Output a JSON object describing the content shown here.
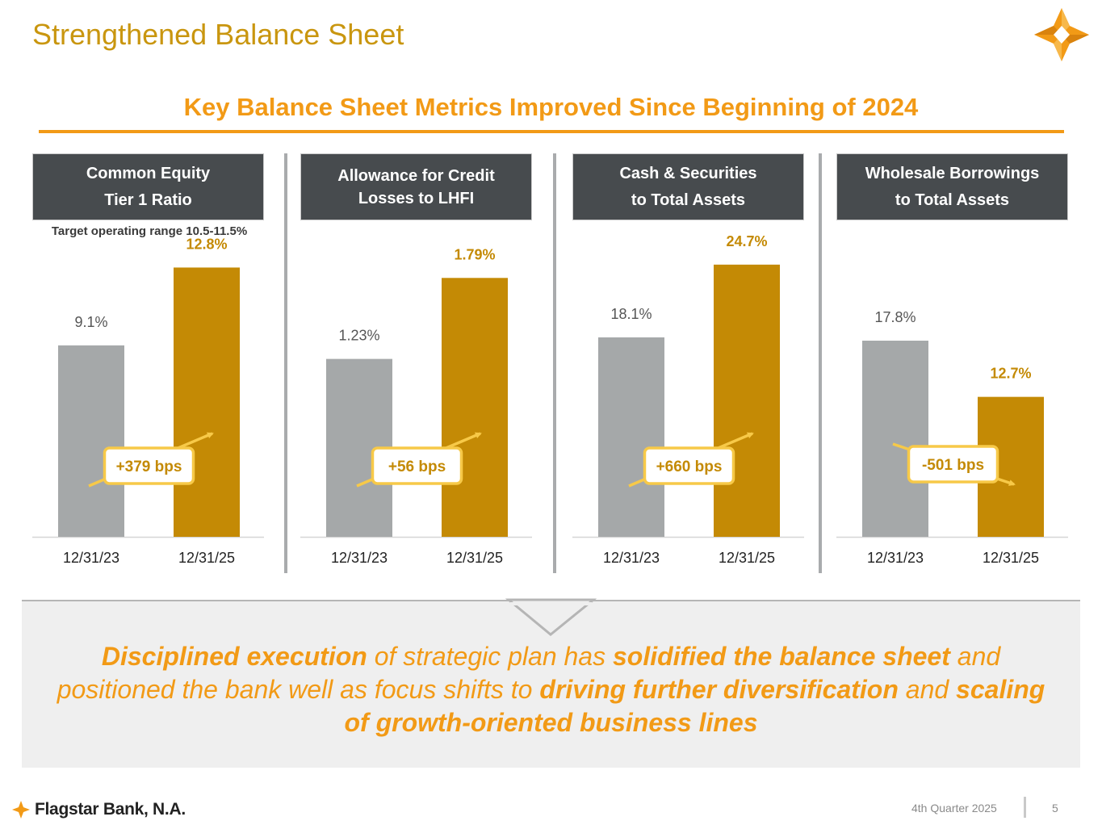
{
  "title": "Strengthened Balance Sheet",
  "subtitle": "Key Balance Sheet Metrics Improved Since Beginning of 2024",
  "colors": {
    "accent": "#F29A16",
    "gold": "#C9960F",
    "bar_prior": "#a5a8a9",
    "bar_current": "#C48A05",
    "header_bg": "#474b4e",
    "delta_border": "#F7C948"
  },
  "panels": [
    {
      "header_line1": "Common Equity",
      "header_line2": "Tier 1 Ratio",
      "note": "Target operating range 10.5-11.5%"
    },
    {
      "header_line1": "Allowance for Credit",
      "header_line2": "Losses to LHFI",
      "note": ""
    },
    {
      "header_line1": "Cash & Securities",
      "header_line2": "to Total Assets",
      "note": ""
    },
    {
      "header_line1": "Wholesale Borrowings",
      "header_line2": "to Total Assets",
      "note": ""
    }
  ],
  "chart_data": [
    {
      "type": "bar",
      "title": "Common Equity Tier 1 Ratio",
      "categories": [
        "12/31/23",
        "12/31/25"
      ],
      "values": [
        9.1,
        12.8
      ],
      "labels": [
        "9.1%",
        "12.8%"
      ],
      "ylim": [
        0,
        16.5
      ],
      "delta": "+379 bps",
      "direction": "up"
    },
    {
      "type": "bar",
      "title": "Allowance for Credit Losses to LHFI",
      "categories": [
        "12/31/23",
        "12/31/25"
      ],
      "values": [
        1.23,
        1.79
      ],
      "labels": [
        "1.23%",
        "1.79%"
      ],
      "ylim": [
        0,
        2.4
      ],
      "delta": "+56 bps",
      "direction": "up"
    },
    {
      "type": "bar",
      "title": "Cash & Securities to Total Assets",
      "categories": [
        "12/31/23",
        "12/31/25"
      ],
      "values": [
        18.1,
        24.7
      ],
      "labels": [
        "18.1%",
        "24.7%"
      ],
      "ylim": [
        0,
        31.5
      ],
      "delta": "+660 bps",
      "direction": "up"
    },
    {
      "type": "bar",
      "title": "Wholesale Borrowings to Total Assets",
      "categories": [
        "12/31/23",
        "12/31/25"
      ],
      "values": [
        17.8,
        12.7
      ],
      "labels": [
        "17.8%",
        "12.7%"
      ],
      "ylim": [
        0,
        31.5
      ],
      "delta": "-501 bps",
      "direction": "down"
    }
  ],
  "caption": {
    "p1_bold": "Disciplined execution",
    "p2": " of strategic plan has ",
    "p3_bold": "solidified the balance sheet",
    "p4": " and positioned the bank well as focus shifts to ",
    "p5_bold": "driving further diversification",
    "p6": " and ",
    "p7_bold": "scaling of growth-oriented business lines"
  },
  "footer": {
    "brand": "Flagstar Bank, N.A.",
    "quarter": "4th Quarter 2025",
    "page_number": "5"
  }
}
